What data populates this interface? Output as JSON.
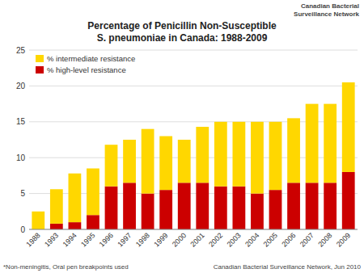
{
  "chart_data": {
    "type": "bar",
    "stacked": true,
    "title": "Percentage of Penicillin Non-Susceptible",
    "subtitle": "S. pneumoniae in Canada: 1988-2009",
    "annotations": [
      "Canadian Bacterial",
      "Surveillance Network",
      "*Non-meningitis, Oral pen breakpoints used",
      "Canadian Bacterial Surveillance Network, Jun 2010"
    ],
    "categories": [
      "1988",
      "1993",
      "1994",
      "1995",
      "1996",
      "1997",
      "1998",
      "1999",
      "2000",
      "2001",
      "2002",
      "2003",
      "2004",
      "2005",
      "2006",
      "2007",
      "2008",
      "2009"
    ],
    "series": [
      {
        "name": "% high-level resistance",
        "color": "#CC0000",
        "values": [
          0.0,
          0.8,
          1.0,
          2.0,
          6.0,
          6.5,
          5.0,
          5.5,
          6.5,
          6.5,
          6.0,
          6.0,
          5.0,
          5.5,
          6.5,
          6.5,
          6.5,
          8.0
        ]
      },
      {
        "name": "% intermediate resistance",
        "color": "#FFD700",
        "values": [
          2.5,
          4.8,
          6.8,
          6.5,
          5.8,
          6.0,
          9.0,
          7.5,
          6.0,
          7.8,
          9.0,
          9.0,
          10.0,
          9.5,
          9.0,
          11.0,
          11.0,
          12.5
        ]
      }
    ],
    "ylim": [
      0,
      25
    ],
    "yticks": [
      0,
      5,
      10,
      15,
      20,
      25
    ],
    "grid": true,
    "legend": "upper left"
  }
}
